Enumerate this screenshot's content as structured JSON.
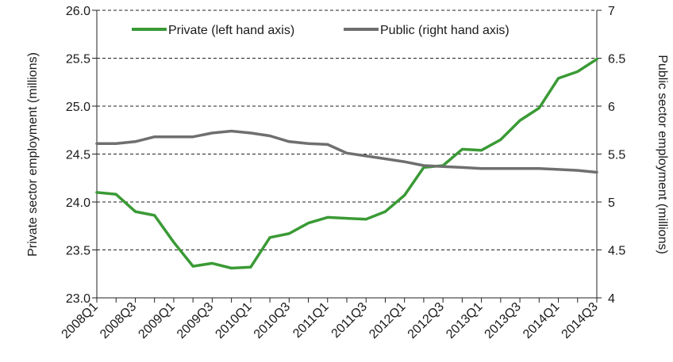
{
  "chart_data": {
    "type": "line",
    "title": "",
    "categories": [
      "2008Q1",
      "2008Q2",
      "2008Q3",
      "2008Q4",
      "2009Q1",
      "2009Q2",
      "2009Q3",
      "2009Q4",
      "2010Q1",
      "2010Q2",
      "2010Q3",
      "2010Q4",
      "2011Q1",
      "2011Q2",
      "2011Q3",
      "2011Q4",
      "2012Q1",
      "2012Q2",
      "2012Q3",
      "2012Q4",
      "2013Q1",
      "2013Q2",
      "2013Q3",
      "2013Q4",
      "2014Q1",
      "2014Q2",
      "2014Q3"
    ],
    "x_tick_labels": [
      "2008Q1",
      "2008Q3",
      "2009Q1",
      "2009Q3",
      "2010Q1",
      "2010Q3",
      "2011Q1",
      "2011Q3",
      "2012Q1",
      "2012Q3",
      "2013Q1",
      "2013Q3",
      "2014Q1",
      "2014Q3"
    ],
    "ylabel_left": "Private sector employment (millions)",
    "ylabel_right": "Public sector employment (millions)",
    "ylim_left": [
      23.0,
      26.0
    ],
    "ylim_right": [
      4,
      7
    ],
    "yticks_left": [
      "23.0",
      "23.5",
      "24.0",
      "24.5",
      "25.0",
      "25.5",
      "26.0"
    ],
    "yticks_right": [
      "4",
      "4.5",
      "5",
      "5.5",
      "6",
      "6.5",
      "7"
    ],
    "grid": true,
    "legend_position": "top",
    "series": [
      {
        "name": "Private (left hand axis)",
        "axis": "left",
        "color": "#3a9a35",
        "values": [
          24.1,
          24.08,
          23.9,
          23.86,
          23.58,
          23.33,
          23.36,
          23.31,
          23.32,
          23.63,
          23.67,
          23.78,
          23.84,
          23.83,
          23.82,
          23.9,
          24.07,
          24.36,
          24.38,
          24.55,
          24.54,
          24.65,
          24.85,
          24.98,
          25.29,
          25.36,
          25.49
        ]
      },
      {
        "name": "Public (right hand axis)",
        "axis": "right",
        "color": "#6f6f6f",
        "values": [
          5.61,
          5.61,
          5.63,
          5.68,
          5.68,
          5.68,
          5.72,
          5.74,
          5.72,
          5.69,
          5.63,
          5.61,
          5.6,
          5.51,
          5.48,
          5.45,
          5.42,
          5.38,
          5.37,
          5.36,
          5.35,
          5.35,
          5.35,
          5.35,
          5.34,
          5.33,
          5.31
        ]
      }
    ]
  }
}
